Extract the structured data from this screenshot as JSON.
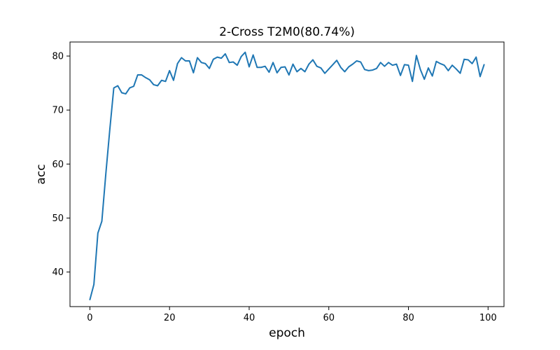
{
  "chart_data": {
    "type": "line",
    "title": "2-Cross T2M0(80.74%)",
    "xlabel": "epoch",
    "ylabel": "acc",
    "xlim": [
      -5,
      104
    ],
    "ylim": [
      33.6,
      82.6
    ],
    "xticks": [
      0,
      20,
      40,
      60,
      80,
      100
    ],
    "yticks": [
      40,
      50,
      60,
      70,
      80
    ],
    "grid": false,
    "legend": "none",
    "series": [
      {
        "color": "#1f77b4",
        "x": [
          0,
          1,
          2,
          3,
          4,
          5,
          6,
          7,
          8,
          9,
          10,
          11,
          12,
          13,
          14,
          15,
          16,
          17,
          18,
          19,
          20,
          21,
          22,
          23,
          24,
          25,
          26,
          27,
          28,
          29,
          30,
          31,
          32,
          33,
          34,
          35,
          36,
          37,
          38,
          39,
          40,
          41,
          42,
          43,
          44,
          45,
          46,
          47,
          48,
          49,
          50,
          51,
          52,
          53,
          54,
          55,
          56,
          57,
          58,
          59,
          60,
          61,
          62,
          63,
          64,
          65,
          66,
          67,
          68,
          69,
          70,
          71,
          72,
          73,
          74,
          75,
          76,
          77,
          78,
          79,
          80,
          81,
          82,
          83,
          84,
          85,
          86,
          87,
          88,
          89,
          90,
          91,
          92,
          93,
          94,
          95,
          96,
          97,
          98,
          99
        ],
        "values": [
          34.9,
          37.7,
          47.2,
          49.4,
          58.2,
          66.4,
          74.1,
          74.5,
          73.2,
          73.0,
          74.1,
          74.4,
          76.5,
          76.5,
          76.0,
          75.6,
          74.7,
          74.5,
          75.5,
          75.3,
          77.3,
          75.5,
          78.6,
          79.7,
          79.1,
          79.1,
          76.9,
          79.7,
          78.8,
          78.6,
          77.7,
          79.4,
          79.8,
          79.6,
          80.4,
          78.8,
          78.9,
          78.3,
          79.9,
          80.7,
          78.0,
          80.2,
          77.9,
          77.9,
          78.1,
          77.0,
          78.8,
          76.9,
          77.9,
          78.0,
          76.5,
          78.5,
          77.1,
          77.7,
          77.1,
          78.5,
          79.3,
          78.1,
          77.8,
          76.8,
          77.6,
          78.4,
          79.2,
          77.9,
          77.1,
          78.0,
          78.5,
          79.1,
          78.9,
          77.5,
          77.3,
          77.4,
          77.7,
          78.8,
          78.1,
          78.8,
          78.3,
          78.5,
          76.4,
          78.4,
          78.3,
          75.3,
          80.1,
          77.5,
          75.7,
          77.8,
          76.3,
          79.0,
          78.6,
          78.3,
          77.3,
          78.3,
          77.6,
          76.8,
          79.4,
          79.3,
          78.6,
          79.8,
          76.2,
          78.4
        ]
      }
    ]
  }
}
